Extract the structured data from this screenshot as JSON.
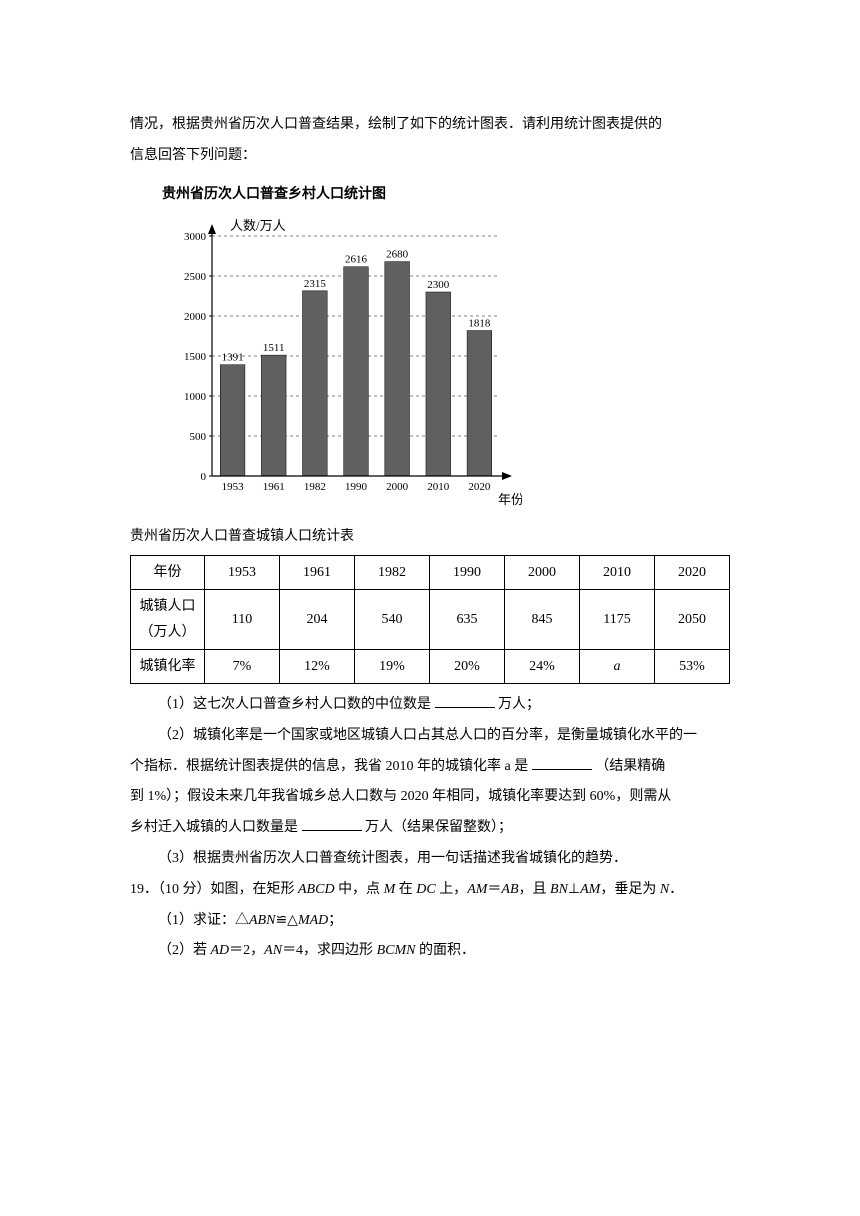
{
  "intro": {
    "line1": "情况，根据贵州省历次人口普查结果，绘制了如下的统计图表．请利用统计图表提供的",
    "line2": "信息回答下列问题："
  },
  "chart": {
    "title": "贵州省历次人口普查乡村人口统计图",
    "type": "bar",
    "y_axis_label": "人数/万人",
    "x_axis_label": "年份",
    "categories": [
      "1953",
      "1961",
      "1982",
      "1990",
      "2000",
      "2010",
      "2020"
    ],
    "values": [
      1391,
      1511,
      2315,
      2616,
      2680,
      2300,
      1818
    ],
    "ylim": [
      0,
      3000
    ],
    "ytick_step": 500,
    "yticks": [
      "0",
      "500",
      "1000",
      "1500",
      "2000",
      "2500",
      "3000"
    ],
    "bar_color": "#606060",
    "background_color": "#ffffff",
    "axis_color": "#000000",
    "grid_color": "#000000",
    "label_fontsize": 11,
    "bar_width_ratio": 0.6
  },
  "table": {
    "caption": "贵州省历次人口普查城镇人口统计表",
    "columns": [
      "年份",
      "1953",
      "1961",
      "1982",
      "1990",
      "2000",
      "2010",
      "2020"
    ],
    "row1_label": "城镇人口（万人）",
    "row1": [
      "110",
      "204",
      "540",
      "635",
      "845",
      "1175",
      "2050"
    ],
    "row2_label": "城镇化率",
    "row2": [
      "7%",
      "12%",
      "19%",
      "20%",
      "24%",
      "a",
      "53%"
    ]
  },
  "questions": {
    "q1_a": "（1）这七次人口普查乡村人口数的中位数是",
    "q1_b": "万人；",
    "q2_a": "（2）城镇化率是一个国家或地区城镇人口占其总人口的百分率，是衡量城镇化水平的一",
    "q2_b": "个指标．根据统计图表提供的信息，我省 2010 年的城镇化率 a 是",
    "q2_c": "（结果精确",
    "q2_d": "到 1%）；假设未来几年我省城乡总人口数与 2020 年相同，城镇化率要达到 60%，则需从",
    "q2_e": "乡村迁入城镇的人口数量是",
    "q2_f": "万人（结果保留整数）；",
    "q3": "（3）根据贵州省历次人口普查统计图表，用一句话描述我省城镇化的趋势．"
  },
  "problem19": {
    "num": "19．（10 分）如图，在矩形 ",
    "body1": " 中，点 ",
    "body2": " 在 ",
    "body3": " 上，",
    "body4": "＝",
    "body5": "，且 ",
    "body6": "⊥",
    "body7": "，垂足为 ",
    "body8": "．",
    "part1_a": "（1）求证：△",
    "part1_b": "≌△",
    "part1_c": "；",
    "part2_a": "（2）若 ",
    "part2_b": "＝2，",
    "part2_c": "＝4，求四边形 ",
    "part2_d": " 的面积．",
    "ABCD": "ABCD",
    "M": "M",
    "DC": "DC",
    "AM": "AM",
    "AB": "AB",
    "BN": "BN",
    "N": "N",
    "ABN": "ABN",
    "MAD": "MAD",
    "AD": "AD",
    "AN": "AN",
    "BCMN": "BCMN"
  }
}
